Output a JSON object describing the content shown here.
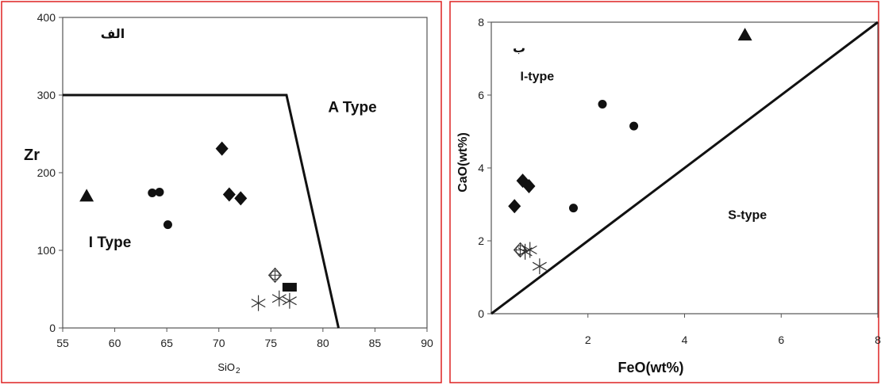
{
  "chart_data": [
    {
      "type": "scatter",
      "panel_label": "الف",
      "xlabel": "SiO",
      "xlabel_sub": "2",
      "ylabel": "Zr",
      "xlim": [
        55,
        90
      ],
      "ylim": [
        0,
        400
      ],
      "xticks": [
        "55",
        "60",
        "65",
        "70",
        "75",
        "80",
        "85",
        "90"
      ],
      "yticks": [
        "0",
        "100",
        "200",
        "300",
        "400"
      ],
      "boundary": [
        [
          55,
          300
        ],
        [
          76.5,
          300
        ],
        [
          81.5,
          0
        ]
      ],
      "regions": [
        {
          "label": "A Type",
          "x": 80.5,
          "y": 278
        },
        {
          "label": "I Type",
          "x": 57.5,
          "y": 104
        }
      ],
      "series": [
        {
          "marker": "triangle",
          "points": [
            [
              57.3,
              170
            ]
          ]
        },
        {
          "marker": "circle",
          "points": [
            [
              63.6,
              174
            ],
            [
              64.3,
              175
            ],
            [
              65.1,
              133
            ]
          ]
        },
        {
          "marker": "diamond",
          "points": [
            [
              70.3,
              231
            ],
            [
              71.0,
              172
            ],
            [
              72.1,
              167
            ]
          ]
        },
        {
          "marker": "circle-cross",
          "points": [
            [
              75.4,
              68
            ]
          ]
        },
        {
          "marker": "rect",
          "points": [
            [
              76.8,
              52
            ]
          ]
        },
        {
          "marker": "asterisk",
          "points": [
            [
              73.8,
              32
            ],
            [
              75.8,
              38
            ],
            [
              76.8,
              35
            ]
          ]
        }
      ]
    },
    {
      "type": "scatter",
      "panel_label": "ب",
      "xlabel": "FeO(wt%)",
      "ylabel": "CaO(wt%)",
      "xlim": [
        0,
        8
      ],
      "ylim": [
        0,
        8
      ],
      "xticks": [
        "2",
        "4",
        "6",
        "8"
      ],
      "yticks": [
        "0",
        "2",
        "4",
        "6",
        "8"
      ],
      "boundary": [
        [
          0,
          0
        ],
        [
          8,
          8
        ]
      ],
      "regions": [
        {
          "label": "I-type",
          "x": 0.6,
          "y": 6.4
        },
        {
          "label": "S-type",
          "x": 4.9,
          "y": 2.6
        }
      ],
      "series": [
        {
          "marker": "triangle",
          "points": [
            [
              5.25,
              7.65
            ]
          ]
        },
        {
          "marker": "circle",
          "points": [
            [
              2.3,
              5.75
            ],
            [
              2.95,
              5.15
            ],
            [
              1.7,
              2.9
            ]
          ]
        },
        {
          "marker": "diamond",
          "points": [
            [
              0.65,
              3.65
            ],
            [
              0.78,
              3.5
            ],
            [
              0.48,
              2.95
            ]
          ]
        },
        {
          "marker": "circle-cross",
          "points": [
            [
              0.6,
              1.75
            ]
          ]
        },
        {
          "marker": "asterisk",
          "points": [
            [
              0.7,
              1.7
            ],
            [
              0.8,
              1.75
            ],
            [
              1.0,
              1.3
            ]
          ]
        }
      ]
    }
  ]
}
